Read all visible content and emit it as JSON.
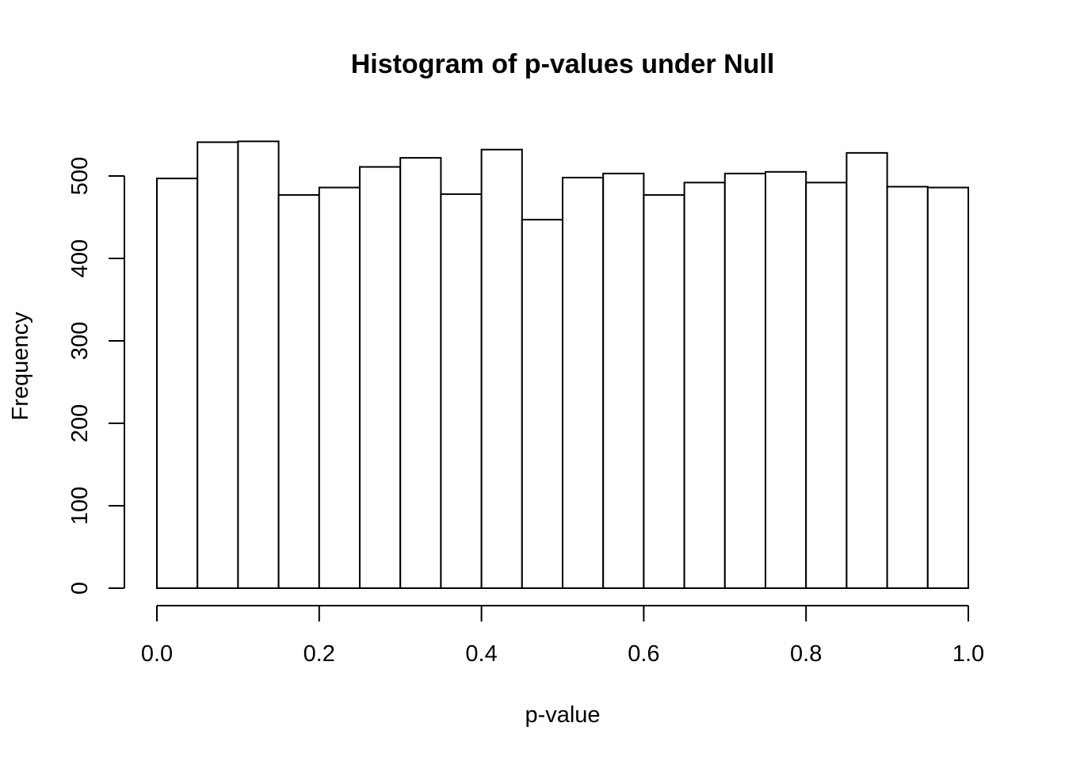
{
  "chart_data": {
    "type": "bar",
    "title": "Histogram of p-values under Null",
    "xlabel": "p-value",
    "ylabel": "Frequency",
    "bin_edges": [
      0.0,
      0.05,
      0.1,
      0.15,
      0.2,
      0.25,
      0.3,
      0.35,
      0.4,
      0.45,
      0.5,
      0.55,
      0.6,
      0.65,
      0.7,
      0.75,
      0.8,
      0.85,
      0.9,
      0.95,
      1.0
    ],
    "values": [
      497,
      541,
      542,
      477,
      486,
      511,
      522,
      478,
      532,
      447,
      498,
      503,
      477,
      492,
      503,
      505,
      492,
      528,
      487,
      486
    ],
    "xlim": [
      0,
      1
    ],
    "ylim": [
      0,
      550
    ],
    "x_ticks": [
      0.0,
      0.2,
      0.4,
      0.6,
      0.8,
      1.0
    ],
    "x_tick_labels": [
      "0.0",
      "0.2",
      "0.4",
      "0.6",
      "0.8",
      "1.0"
    ],
    "y_ticks": [
      0,
      100,
      200,
      300,
      400,
      500
    ],
    "y_tick_labels": [
      "0",
      "100",
      "200",
      "300",
      "400",
      "500"
    ],
    "grid": false,
    "legend": "none",
    "bar_fill": "#ffffff",
    "bar_stroke": "#000000"
  }
}
